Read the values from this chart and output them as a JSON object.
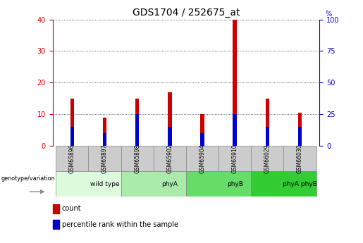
{
  "title": "GDS1704 / 252675_at",
  "samples": [
    "GSM65896",
    "GSM65897",
    "GSM65898",
    "GSM65902",
    "GSM65904",
    "GSM65910",
    "GSM66029",
    "GSM66030"
  ],
  "count_values": [
    15,
    9,
    15,
    17,
    10,
    40,
    15,
    10.5
  ],
  "percentile_values": [
    6,
    4,
    10,
    6,
    4,
    10,
    6,
    6
  ],
  "groups": [
    {
      "label": "wild type",
      "start": 0,
      "end": 2,
      "color": "#ddfadd"
    },
    {
      "label": "phyA",
      "start": 2,
      "end": 4,
      "color": "#aaeaaa"
    },
    {
      "label": "phyB",
      "start": 4,
      "end": 6,
      "color": "#66dd66"
    },
    {
      "label": "phyA phyB",
      "start": 6,
      "end": 8,
      "color": "#33cc33"
    }
  ],
  "ylim_left": [
    0,
    40
  ],
  "ylim_right": [
    0,
    100
  ],
  "yticks_left": [
    0,
    10,
    20,
    30,
    40
  ],
  "yticks_right": [
    0,
    25,
    50,
    75,
    100
  ],
  "left_axis_color": "#cc0000",
  "right_axis_color": "#0000cc",
  "bar_color_count": "#cc0000",
  "bar_color_percentile": "#0000cc",
  "sample_box_color": "#cccccc",
  "genotype_label": "genotype/variation",
  "legend_count": "count",
  "legend_percentile": "percentile rank within the sample",
  "title_fontsize": 10,
  "tick_fontsize": 7,
  "bar_width": 0.12
}
